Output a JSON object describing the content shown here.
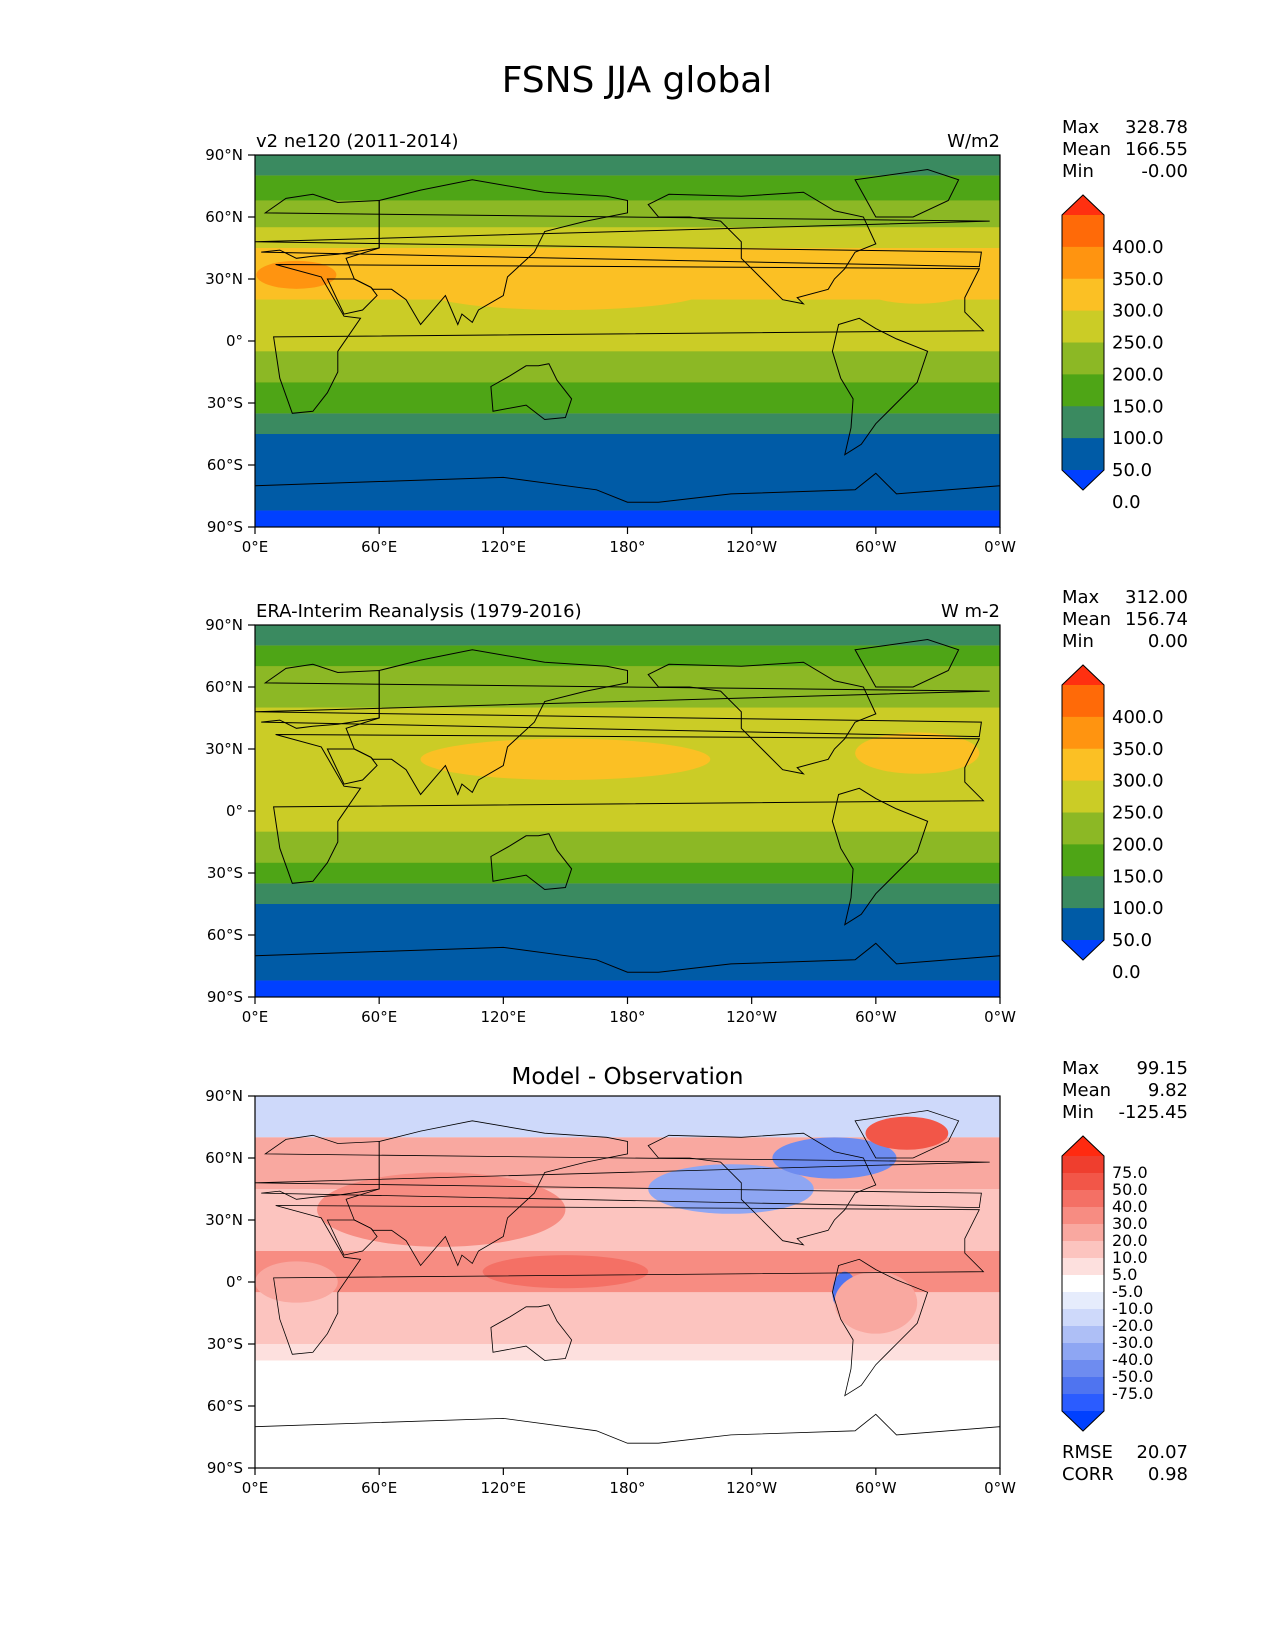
{
  "title": "FSNS JJA global",
  "lat_ticks": [
    "90°N",
    "60°N",
    "30°N",
    "0°",
    "30°S",
    "60°S",
    "90°S"
  ],
  "lon_ticks": [
    "0°E",
    "60°E",
    "120°E",
    "180°",
    "120°W",
    "60°W",
    "0°W"
  ],
  "colors": {
    "main_levels": [
      "#0040ff",
      "#005ba6",
      "#3a8a60",
      "#4ea516",
      "#8cb825",
      "#cbcc26",
      "#fbc024",
      "#ff9410",
      "#ff6a08",
      "#ff3010"
    ],
    "diff_levels": [
      "#0040ff",
      "#2b5cff",
      "#4f74f0",
      "#6e8cf0",
      "#8ea6f3",
      "#aebff6",
      "#ced9fa",
      "#e6ecfc",
      "#ffffff",
      "#fde0de",
      "#fcc4bf",
      "#f9a8a0",
      "#f78c82",
      "#f47065",
      "#f25648",
      "#ef3e2e",
      "#ff2a10"
    ],
    "land_outline": "#000000"
  },
  "panels": [
    {
      "id": "model",
      "left_title": "v2 ne120 (2011-2014)",
      "center_title": "",
      "right_title": "W/m2",
      "stats": [
        {
          "label": "Max",
          "value": "328.78"
        },
        {
          "label": "Mean",
          "value": "166.55"
        },
        {
          "label": "Min",
          "value": "-0.00"
        }
      ],
      "colorbar_labels": [
        "400.0",
        "350.0",
        "300.0",
        "250.0",
        "200.0",
        "150.0",
        "100.0",
        "50.0",
        "0.0"
      ],
      "field_bands_by_lat": [
        {
          "from_lat": 90,
          "to_lat": 80,
          "level": 2
        },
        {
          "from_lat": 80,
          "to_lat": 68,
          "level": 3
        },
        {
          "from_lat": 68,
          "to_lat": 55,
          "level": 4
        },
        {
          "from_lat": 55,
          "to_lat": 45,
          "level": 5
        },
        {
          "from_lat": 45,
          "to_lat": 20,
          "level": 6
        },
        {
          "from_lat": 20,
          "to_lat": -5,
          "level": 5
        },
        {
          "from_lat": -5,
          "to_lat": -20,
          "level": 4
        },
        {
          "from_lat": -20,
          "to_lat": -35,
          "level": 3
        },
        {
          "from_lat": -35,
          "to_lat": -45,
          "level": 2
        },
        {
          "from_lat": -45,
          "to_lat": -82,
          "level": 1
        },
        {
          "from_lat": -82,
          "to_lat": -90,
          "level": 0
        }
      ]
    },
    {
      "id": "obs",
      "left_title": "ERA-Interim Reanalysis (1979-2016)",
      "center_title": "",
      "right_title": "W m-2",
      "stats": [
        {
          "label": "Max",
          "value": "312.00"
        },
        {
          "label": "Mean",
          "value": "156.74"
        },
        {
          "label": "Min",
          "value": "0.00"
        }
      ],
      "colorbar_labels": [
        "400.0",
        "350.0",
        "300.0",
        "250.0",
        "200.0",
        "150.0",
        "100.0",
        "50.0",
        "0.0"
      ],
      "field_bands_by_lat": [
        {
          "from_lat": 90,
          "to_lat": 80,
          "level": 2
        },
        {
          "from_lat": 80,
          "to_lat": 70,
          "level": 3
        },
        {
          "from_lat": 70,
          "to_lat": 50,
          "level": 4
        },
        {
          "from_lat": 50,
          "to_lat": 15,
          "level": 5
        },
        {
          "from_lat": 15,
          "to_lat": -10,
          "level": 5
        },
        {
          "from_lat": -10,
          "to_lat": -25,
          "level": 4
        },
        {
          "from_lat": -25,
          "to_lat": -35,
          "level": 3
        },
        {
          "from_lat": -35,
          "to_lat": -45,
          "level": 2
        },
        {
          "from_lat": -45,
          "to_lat": -82,
          "level": 1
        },
        {
          "from_lat": -82,
          "to_lat": -90,
          "level": 0
        }
      ]
    },
    {
      "id": "diff",
      "left_title": "",
      "center_title": "Model - Observation",
      "right_title": "",
      "stats": [
        {
          "label": "Max",
          "value": "99.15"
        },
        {
          "label": "Mean",
          "value": "9.82"
        },
        {
          "label": "Min",
          "value": "-125.45"
        }
      ],
      "colorbar_labels": [
        "75.0",
        "50.0",
        "40.0",
        "30.0",
        "20.0",
        "10.0",
        "5.0",
        "-5.0",
        "-10.0",
        "-20.0",
        "-30.0",
        "-40.0",
        "-50.0",
        "-75.0"
      ],
      "extra_stats": [
        {
          "label": "RMSE",
          "value": "20.07"
        },
        {
          "label": "CORR",
          "value": "0.98"
        }
      ],
      "field_bands_by_lat": [
        {
          "from_lat": 90,
          "to_lat": 70,
          "level": 6
        },
        {
          "from_lat": 70,
          "to_lat": 45,
          "level": 11
        },
        {
          "from_lat": 45,
          "to_lat": 15,
          "level": 10
        },
        {
          "from_lat": 15,
          "to_lat": -5,
          "level": 12
        },
        {
          "from_lat": -5,
          "to_lat": -30,
          "level": 10
        },
        {
          "from_lat": -30,
          "to_lat": -38,
          "level": 9
        },
        {
          "from_lat": -38,
          "to_lat": -90,
          "level": 8
        }
      ]
    }
  ]
}
